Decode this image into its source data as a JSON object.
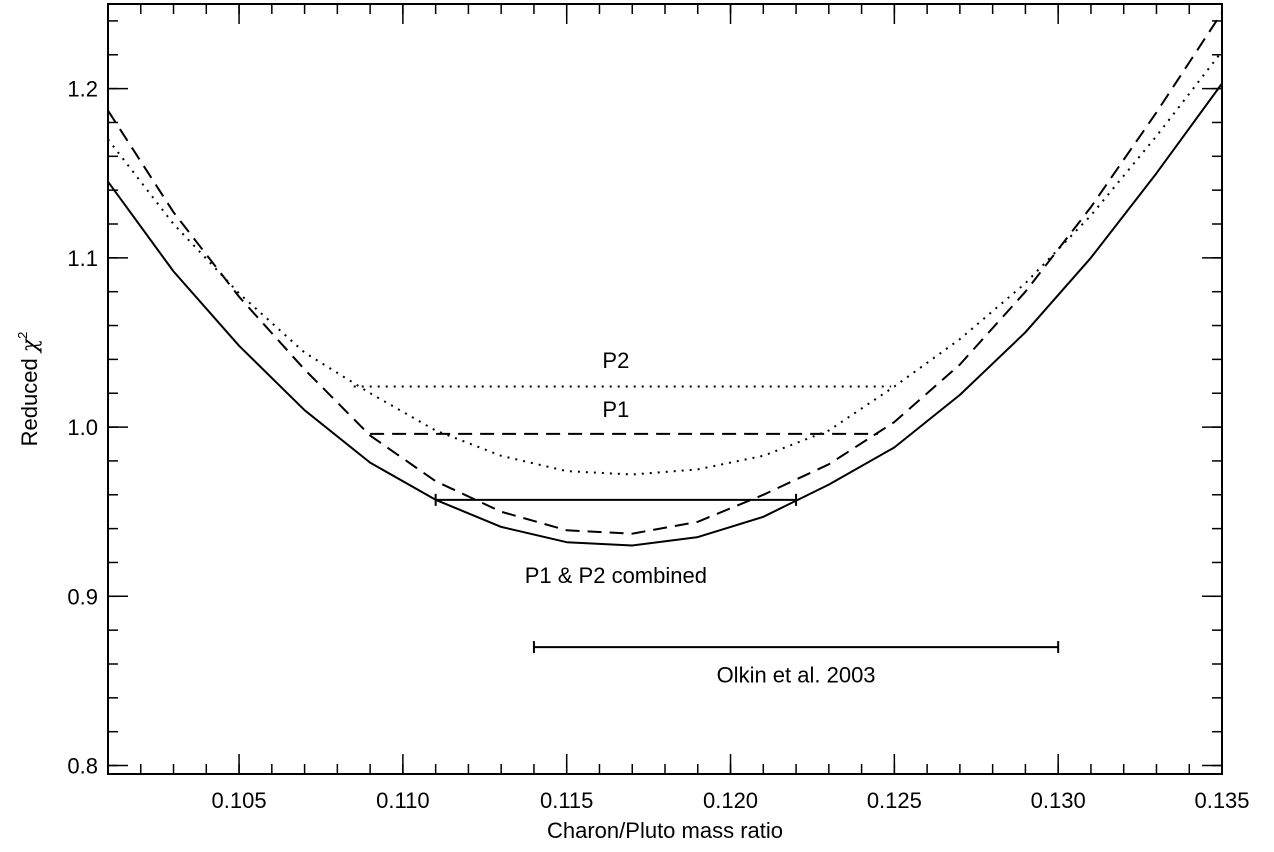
{
  "chart_data": {
    "type": "line",
    "xlabel": "Charon/Pluto mass ratio",
    "ylabel_main": "Reduced ",
    "ylabel_symbol": "χ",
    "ylabel_superscript": "2",
    "xlim": [
      0.101,
      0.135
    ],
    "ylim": [
      0.795,
      1.25
    ],
    "xticks": [
      0.105,
      0.11,
      0.115,
      0.12,
      0.125,
      0.13,
      0.135
    ],
    "xtick_labels": [
      "0.105",
      "0.110",
      "0.115",
      "0.120",
      "0.125",
      "0.130",
      "0.135"
    ],
    "yticks": [
      0.8,
      0.9,
      1.0,
      1.1,
      1.2
    ],
    "ytick_labels": [
      "0.8",
      "0.9",
      "1.0",
      "1.1",
      "1.2"
    ],
    "x_minor_step": 0.001,
    "y_minor_step": 0.02,
    "grid": false,
    "series": [
      {
        "style": "solid",
        "x": [
          0.101,
          0.103,
          0.105,
          0.107,
          0.109,
          0.111,
          0.113,
          0.115,
          0.117,
          0.119,
          0.121,
          0.123,
          0.125,
          0.127,
          0.129,
          0.131,
          0.133,
          0.135
        ],
        "y": [
          1.145,
          1.092,
          1.048,
          1.01,
          0.979,
          0.957,
          0.941,
          0.932,
          0.93,
          0.935,
          0.947,
          0.966,
          0.988,
          1.019,
          1.056,
          1.1,
          1.15,
          1.203
        ]
      },
      {
        "style": "dashed",
        "x": [
          0.101,
          0.103,
          0.105,
          0.107,
          0.109,
          0.111,
          0.113,
          0.115,
          0.117,
          0.119,
          0.121,
          0.123,
          0.125,
          0.127,
          0.129,
          0.131,
          0.133,
          0.135
        ],
        "y": [
          1.187,
          1.127,
          1.077,
          1.034,
          0.995,
          0.968,
          0.95,
          0.939,
          0.937,
          0.944,
          0.96,
          0.978,
          1.003,
          1.037,
          1.08,
          1.13,
          1.186,
          1.245
        ]
      },
      {
        "style": "dotted",
        "x": [
          0.101,
          0.103,
          0.105,
          0.107,
          0.109,
          0.111,
          0.113,
          0.115,
          0.117,
          0.119,
          0.121,
          0.123,
          0.125,
          0.127,
          0.129,
          0.131,
          0.133,
          0.135
        ],
        "y": [
          1.17,
          1.12,
          1.079,
          1.044,
          1.02,
          0.998,
          0.983,
          0.974,
          0.972,
          0.975,
          0.983,
          0.998,
          1.024,
          1.052,
          1.085,
          1.125,
          1.172,
          1.222
        ]
      }
    ],
    "ranges": [
      {
        "style": "dotted",
        "x1": 0.1085,
        "x2": 0.1249,
        "y": 1.024,
        "end_caps": false
      },
      {
        "style": "dashed",
        "x1": 0.109,
        "x2": 0.1245,
        "y": 0.996,
        "end_caps": false
      },
      {
        "style": "solid",
        "x1": 0.111,
        "x2": 0.122,
        "y": 0.957,
        "end_caps": true
      },
      {
        "style": "solid",
        "x1": 0.114,
        "x2": 0.13,
        "y": 0.87,
        "end_caps": true
      }
    ],
    "annotations": [
      {
        "text": "P2",
        "x": 0.1165,
        "y": 1.035,
        "anchor": "middle"
      },
      {
        "text": "P1",
        "x": 0.1165,
        "y": 1.006,
        "anchor": "middle"
      },
      {
        "text": "P1 & P2 combined",
        "x": 0.1165,
        "y": 0.908,
        "anchor": "middle"
      },
      {
        "text": "Olkin et al. 2003",
        "x": 0.122,
        "y": 0.849,
        "anchor": "middle"
      }
    ]
  }
}
